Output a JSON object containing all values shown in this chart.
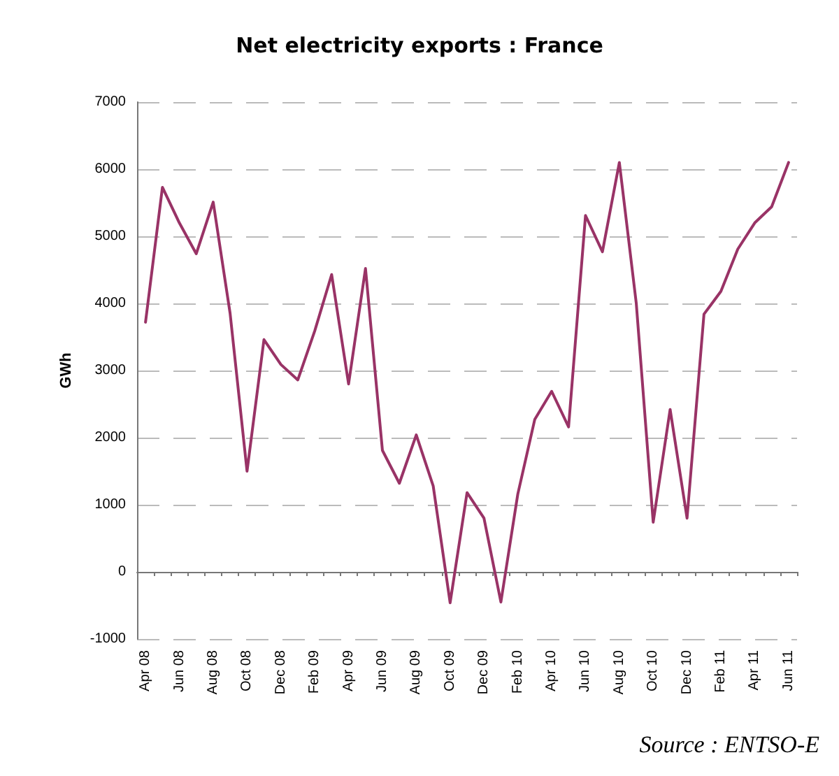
{
  "chart_data": {
    "type": "line",
    "title": "Net electricity exports : France",
    "ylabel": "GWh",
    "annotations": [
      "Source : ENTSO-E"
    ],
    "categories": [
      "Apr 08",
      null,
      "Jun 08",
      null,
      "Aug 08",
      null,
      "Oct 08",
      null,
      "Dec 08",
      null,
      "Feb 09",
      null,
      "Apr 09",
      null,
      "Jun 09",
      null,
      "Aug 09",
      null,
      "Oct 09",
      null,
      "Dec 09",
      null,
      "Feb 10",
      null,
      "Apr 10",
      null,
      "Jun 10",
      null,
      "Aug 10",
      null,
      "Oct 10",
      null,
      "Dec 10",
      null,
      "Feb 11",
      null,
      "Apr 11",
      null,
      "Jun 11"
    ],
    "series": [
      {
        "color": "#993366",
        "values": [
          3720,
          5730,
          5200,
          4740,
          5510,
          3850,
          1500,
          3460,
          3090,
          2860,
          3590,
          4430,
          2800,
          4520,
          1810,
          1320,
          2040,
          1280,
          -460,
          1180,
          800,
          -450,
          1160,
          2270,
          2690,
          2160,
          5310,
          4770,
          6100,
          4000,
          740,
          2420,
          800,
          3840,
          4180,
          4810,
          5200,
          5440,
          6100
        ]
      }
    ],
    "ylim": [
      -1000,
      7000
    ],
    "yticks": [
      -1000,
      0,
      1000,
      2000,
      3000,
      4000,
      5000,
      6000,
      7000
    ],
    "grid": "y",
    "marker": "none",
    "line_style": "solid"
  }
}
